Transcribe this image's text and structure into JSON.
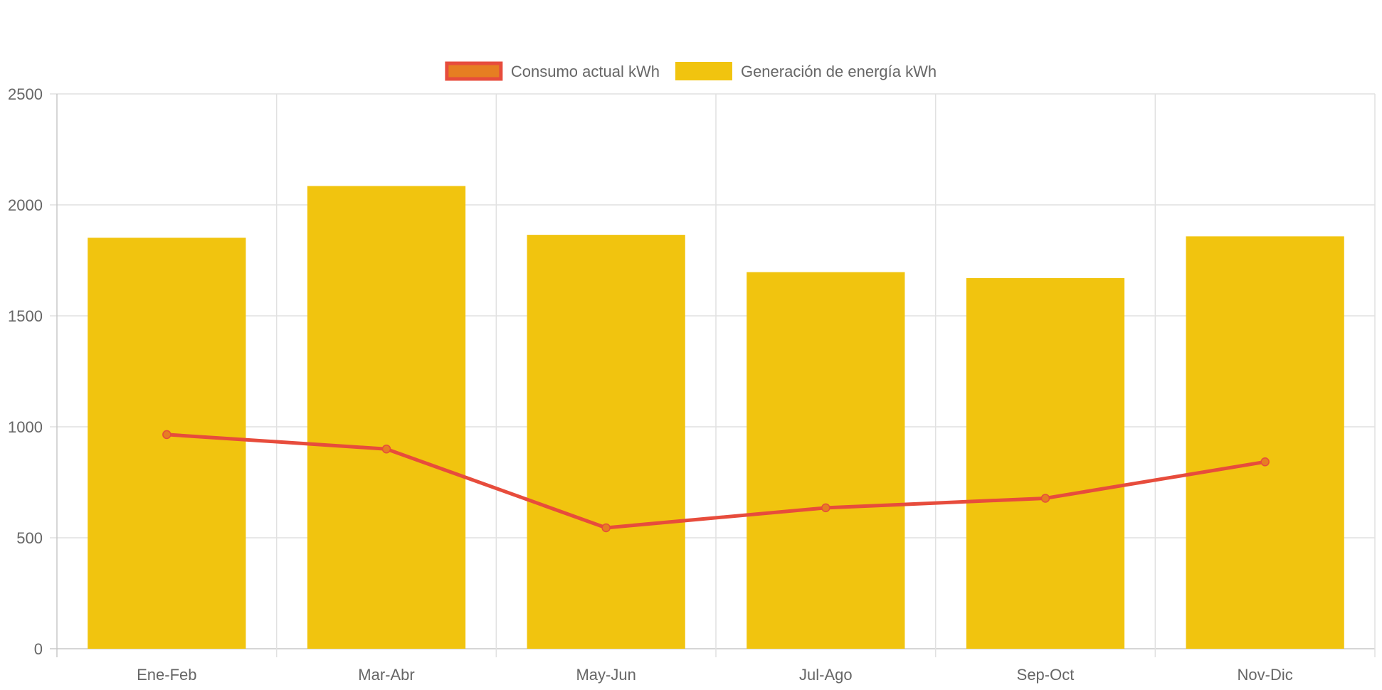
{
  "chart_data": {
    "type": "bar",
    "categories": [
      "Ene-Feb",
      "Mar-Abr",
      "May-Jun",
      "Jul-Ago",
      "Sep-Oct",
      "Nov-Dic"
    ],
    "series": [
      {
        "name": "Consumo actual kWh",
        "type": "line",
        "values": [
          965,
          900,
          545,
          635,
          678,
          842
        ],
        "color": "#e74c3c",
        "point_color": "#e67e22"
      },
      {
        "name": "Generación de energía kWh",
        "type": "bar",
        "values": [
          1852,
          2085,
          1865,
          1697,
          1670,
          1858
        ],
        "color": "#f1c40f"
      }
    ],
    "yticks": [
      0,
      500,
      1000,
      1500,
      2000,
      2500
    ],
    "ylim": [
      0,
      2500
    ],
    "grid": true,
    "legend_position": "top"
  },
  "colors": {
    "line": "#e74c3c",
    "point": "#e67e22",
    "bar": "#f1c40f",
    "grid": "#e1e1e1",
    "text": "#666666"
  }
}
